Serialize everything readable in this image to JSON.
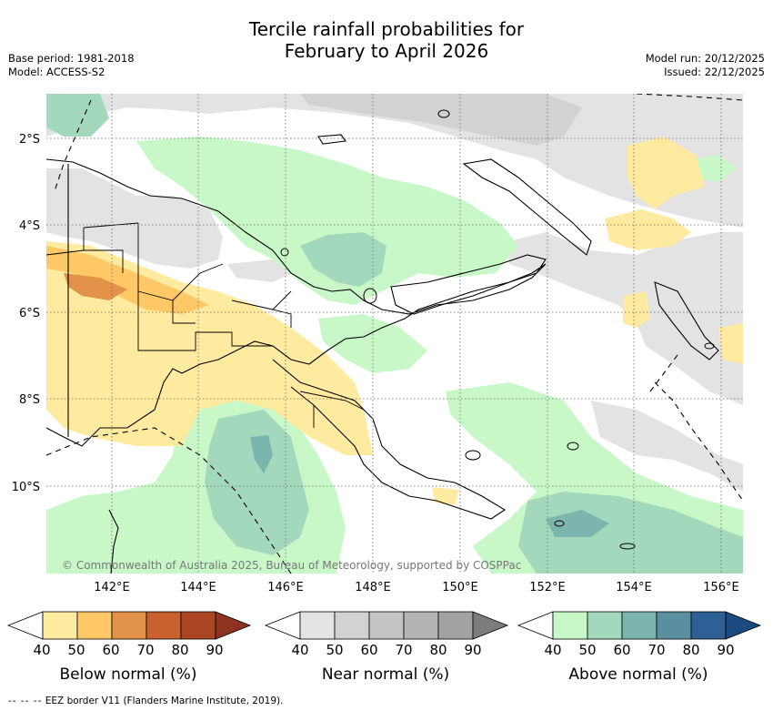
{
  "title_line1": "Tercile rainfall probabilities for",
  "title_line2": "February to April 2026",
  "meta_left": [
    "Base period: 1981-2018",
    "Model: ACCESS-S2"
  ],
  "meta_right": [
    "Model run: 20/12/2025",
    "Issued: 22/12/2025"
  ],
  "copyright": "© Commonwealth of Australia 2025, Bureau of Meteorology, supported by COSPPac",
  "lat_labels": [
    "2°S",
    "4°S",
    "6°S",
    "8°S",
    "10°S"
  ],
  "lon_labels": [
    "142°E",
    "144°E",
    "146°E",
    "148°E",
    "150°E",
    "152°E",
    "154°E",
    "156°E"
  ],
  "legends": [
    {
      "label": "Below normal (%)",
      "ticks": [
        "40",
        "50",
        "60",
        "70",
        "80",
        "90"
      ],
      "colors": [
        "#ffffff",
        "#ffeba0",
        "#fdc865",
        "#e3924a",
        "#c8612e",
        "#ab4625",
        "#8e3322"
      ]
    },
    {
      "label": "Near normal (%)",
      "ticks": [
        "40",
        "50",
        "60",
        "70",
        "80",
        "90"
      ],
      "colors": [
        "#ffffff",
        "#e3e3e3",
        "#d2d2d2",
        "#c4c4c4",
        "#b4b4b4",
        "#a2a2a2",
        "#7c7c7c"
      ]
    },
    {
      "label": "Above normal (%)",
      "ticks": [
        "40",
        "50",
        "60",
        "70",
        "80",
        "90"
      ],
      "colors": [
        "#ffffff",
        "#c8f8c8",
        "#a3d8bc",
        "#7cb5ad",
        "#5a8fa0",
        "#2f6095",
        "#1b4a80"
      ]
    }
  ],
  "footer_dash": "-- -- --",
  "footer": "EEZ border V11 (Flanders Marine Institute, 2019)."
}
